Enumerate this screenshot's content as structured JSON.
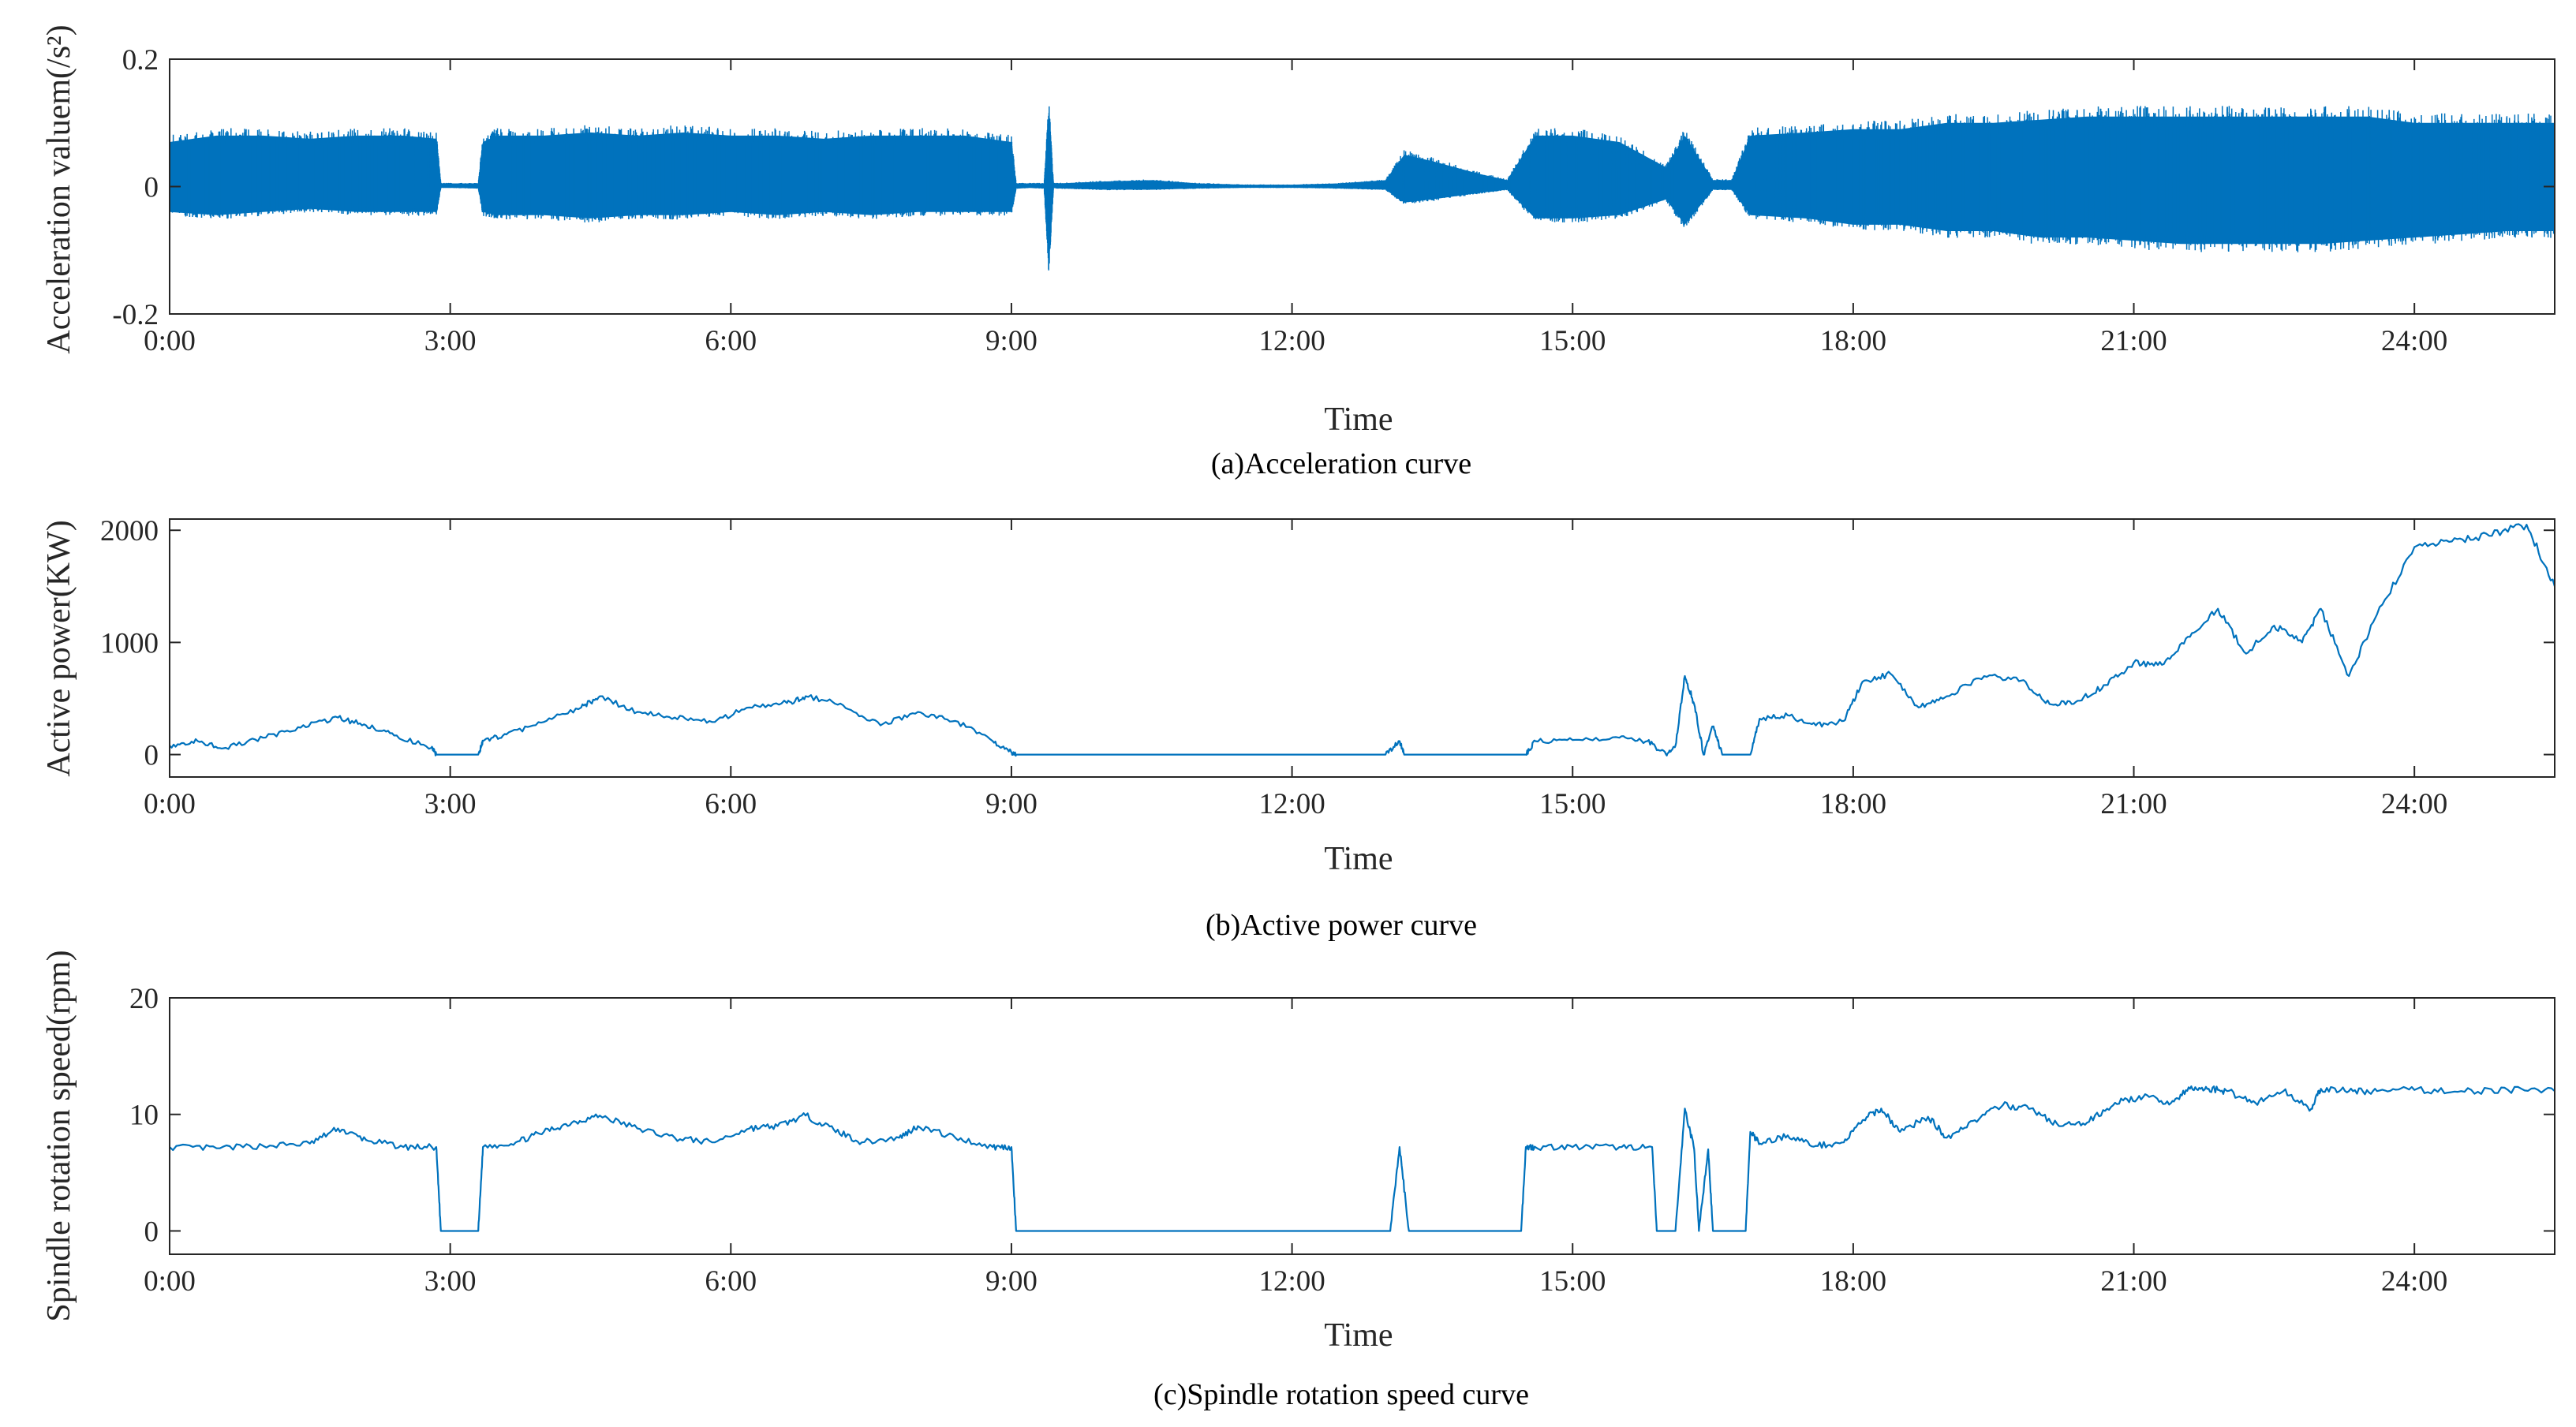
{
  "colors": {
    "series": "#0072BD",
    "axis": "#262626",
    "background": "#ffffff"
  },
  "chart_data": [
    {
      "type": "line",
      "caption": "(a)Acceleration curve",
      "xlabel": "Time",
      "ylabel": "Acceleration valuem(/s²)",
      "ylim": [
        -0.2,
        0.2
      ],
      "yticks": [
        -0.2,
        0,
        0.2
      ],
      "ytick_labels": [
        "-0.2",
        "0",
        "0.2"
      ],
      "xlim": [
        0,
        25.5
      ],
      "xticks": [
        0,
        3,
        6,
        9,
        12,
        15,
        18,
        21,
        24
      ],
      "xtick_labels": [
        "0:00",
        "3:00",
        "6:00",
        "9:00",
        "12:00",
        "15:00",
        "18:00",
        "21:00",
        "24:00"
      ],
      "series": [
        {
          "name": "Acceleration",
          "style": "envelope",
          "x": [
            0.0,
            0.5,
            1.0,
            1.5,
            2.0,
            2.5,
            2.85,
            2.9,
            3.0,
            3.3,
            3.35,
            3.5,
            4.0,
            4.5,
            5.0,
            5.5,
            6.0,
            6.5,
            7.0,
            7.5,
            8.0,
            8.5,
            9.0,
            9.05,
            9.2,
            9.35,
            9.4,
            9.45,
            9.5,
            10.0,
            10.5,
            11.0,
            11.5,
            12.0,
            12.5,
            13.0,
            13.2,
            13.5,
            14.0,
            14.3,
            14.6,
            15.0,
            15.5,
            16.0,
            16.2,
            16.5,
            16.7,
            16.9,
            17.5,
            18.0,
            18.5,
            19.0,
            19.5,
            20.0,
            20.5,
            21.0,
            21.5,
            22.0,
            22.5,
            23.0,
            23.5,
            24.0,
            24.5,
            25.0,
            25.5
          ],
          "upper": [
            0.07,
            0.08,
            0.08,
            0.075,
            0.08,
            0.08,
            0.075,
            0.005,
            0.005,
            0.005,
            0.07,
            0.08,
            0.08,
            0.085,
            0.08,
            0.085,
            0.08,
            0.08,
            0.075,
            0.08,
            0.08,
            0.08,
            0.07,
            0.005,
            0.005,
            0.005,
            0.12,
            0.005,
            0.005,
            0.008,
            0.01,
            0.005,
            0.003,
            0.003,
            0.005,
            0.01,
            0.05,
            0.04,
            0.02,
            0.01,
            0.08,
            0.08,
            0.07,
            0.03,
            0.08,
            0.01,
            0.01,
            0.08,
            0.085,
            0.09,
            0.09,
            0.1,
            0.1,
            0.105,
            0.11,
            0.11,
            0.11,
            0.11,
            0.11,
            0.11,
            0.11,
            0.1,
            0.1,
            0.1,
            0.1
          ],
          "lower": [
            -0.04,
            -0.045,
            -0.04,
            -0.035,
            -0.04,
            -0.04,
            -0.04,
            -0.002,
            -0.002,
            -0.003,
            -0.04,
            -0.045,
            -0.045,
            -0.05,
            -0.045,
            -0.045,
            -0.04,
            -0.045,
            -0.04,
            -0.045,
            -0.04,
            -0.04,
            -0.04,
            -0.003,
            -0.002,
            -0.003,
            -0.12,
            -0.002,
            -0.003,
            -0.005,
            -0.005,
            -0.003,
            -0.002,
            -0.002,
            -0.003,
            -0.005,
            -0.025,
            -0.02,
            -0.01,
            -0.005,
            -0.05,
            -0.05,
            -0.045,
            -0.02,
            -0.06,
            -0.005,
            -0.005,
            -0.045,
            -0.05,
            -0.06,
            -0.06,
            -0.07,
            -0.07,
            -0.08,
            -0.08,
            -0.085,
            -0.09,
            -0.09,
            -0.09,
            -0.09,
            -0.085,
            -0.08,
            -0.075,
            -0.07,
            -0.07
          ]
        }
      ]
    },
    {
      "type": "line",
      "caption": "(b)Active power curve",
      "xlabel": "Time",
      "ylabel": "Active power(KW)",
      "ylim": [
        -200,
        2100
      ],
      "yticks": [
        0,
        1000,
        2000
      ],
      "ytick_labels": [
        "0",
        "1000",
        "2000"
      ],
      "xlim": [
        0,
        25.5
      ],
      "xticks": [
        0,
        3,
        6,
        9,
        12,
        15,
        18,
        21,
        24
      ],
      "xtick_labels": [
        "0:00",
        "3:00",
        "6:00",
        "9:00",
        "12:00",
        "15:00",
        "18:00",
        "21:00",
        "24:00"
      ],
      "series": [
        {
          "name": "Active power",
          "x": [
            0.0,
            0.3,
            0.6,
            1.0,
            1.4,
            1.8,
            2.1,
            2.4,
            2.8,
            2.85,
            3.0,
            3.3,
            3.35,
            3.6,
            4.0,
            4.4,
            4.6,
            5.0,
            5.4,
            5.8,
            6.2,
            6.6,
            6.8,
            7.2,
            7.6,
            8.0,
            8.4,
            8.8,
            9.0,
            9.05,
            10.0,
            11.0,
            12.0,
            13.0,
            13.15,
            13.2,
            13.3,
            14.0,
            14.5,
            14.6,
            15.0,
            15.5,
            15.8,
            16.0,
            16.1,
            16.2,
            16.3,
            16.4,
            16.5,
            16.6,
            16.7,
            16.9,
            17.0,
            17.3,
            17.6,
            17.9,
            18.1,
            18.4,
            18.7,
            19.0,
            19.4,
            19.8,
            20.1,
            20.4,
            20.7,
            21.0,
            21.3,
            21.6,
            21.9,
            22.2,
            22.5,
            22.8,
            23.0,
            23.3,
            23.6,
            24.0,
            24.4,
            24.8,
            25.2,
            25.5
          ],
          "values": [
            80,
            120,
            60,
            150,
            240,
            330,
            260,
            170,
            60,
            0,
            0,
            0,
            120,
            180,
            290,
            420,
            520,
            380,
            330,
            290,
            420,
            460,
            520,
            440,
            260,
            380,
            300,
            120,
            20,
            0,
            0,
            0,
            0,
            0,
            120,
            0,
            0,
            0,
            0,
            120,
            130,
            150,
            120,
            0,
            80,
            700,
            450,
            0,
            250,
            0,
            0,
            0,
            320,
            350,
            260,
            300,
            650,
            720,
            420,
            520,
            700,
            660,
            450,
            480,
            620,
            820,
            800,
            1050,
            1300,
            900,
            1150,
            1000,
            1300,
            700,
            1250,
            1850,
            1900,
            1950,
            2050,
            1500
          ]
        }
      ]
    },
    {
      "type": "line",
      "caption": "(c)Spindle rotation speed curve",
      "xlabel": "Time",
      "ylabel": "Spindle rotation speed(rpm)",
      "ylim": [
        -2,
        20
      ],
      "yticks": [
        0,
        10,
        20
      ],
      "ytick_labels": [
        "0",
        "10",
        "20"
      ],
      "xlim": [
        0,
        25.5
      ],
      "xticks": [
        0,
        3,
        6,
        9,
        12,
        15,
        18,
        21,
        24
      ],
      "xtick_labels": [
        "0:00",
        "3:00",
        "6:00",
        "9:00",
        "12:00",
        "15:00",
        "18:00",
        "21:00",
        "24:00"
      ],
      "series": [
        {
          "name": "Spindle rotation speed",
          "x": [
            0.0,
            0.5,
            1.0,
            1.5,
            1.8,
            2.1,
            2.5,
            2.85,
            2.9,
            3.3,
            3.35,
            3.7,
            4.0,
            4.3,
            4.6,
            5.0,
            5.4,
            5.8,
            6.2,
            6.5,
            6.8,
            7.1,
            7.4,
            7.8,
            8.0,
            8.4,
            8.8,
            9.0,
            9.05,
            10.0,
            11.0,
            12.0,
            13.05,
            13.15,
            13.25,
            14.0,
            14.45,
            14.5,
            14.6,
            15.0,
            15.5,
            15.85,
            15.9,
            16.1,
            16.2,
            16.3,
            16.35,
            16.45,
            16.5,
            16.6,
            16.85,
            16.9,
            17.0,
            17.3,
            17.6,
            17.9,
            18.1,
            18.3,
            18.5,
            18.8,
            19.0,
            19.3,
            19.6,
            19.9,
            20.2,
            20.5,
            20.8,
            21.1,
            21.4,
            21.6,
            21.8,
            22.0,
            22.3,
            22.6,
            22.9,
            23.0,
            23.3,
            23.6,
            24.0,
            24.5,
            25.0,
            25.5
          ],
          "values": [
            7.2,
            7.1,
            7.3,
            7.5,
            8.8,
            7.8,
            7.2,
            7.2,
            0,
            0,
            7.2,
            7.6,
            8.5,
            9.3,
            9.9,
            8.8,
            8.0,
            7.6,
            8.8,
            9.0,
            9.9,
            8.7,
            7.6,
            8.0,
            9.0,
            8.0,
            7.2,
            7.2,
            0,
            0,
            0,
            0,
            0,
            7.2,
            0,
            0,
            0,
            7.2,
            7.2,
            7.2,
            7.2,
            7.2,
            0,
            0,
            10.5,
            7.0,
            0,
            7.0,
            0,
            0,
            0,
            8.5,
            7.5,
            8.2,
            7.3,
            7.6,
            9.5,
            10.5,
            8.5,
            9.8,
            8.0,
            9.5,
            10.8,
            10.5,
            9.0,
            9.3,
            11.0,
            11.5,
            11.0,
            12.2,
            12.2,
            12.0,
            11.0,
            12.0,
            10.5,
            12.2,
            12.0,
            12.0,
            12.1,
            12.0,
            12.1,
            12.0
          ]
        }
      ]
    }
  ]
}
